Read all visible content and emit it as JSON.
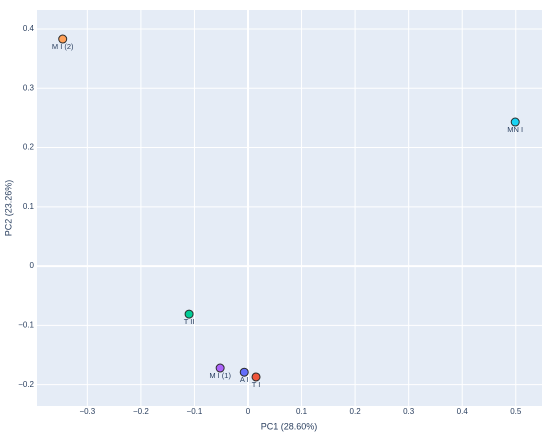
{
  "chart_data": {
    "type": "scatter",
    "x_label": "PC1 (28.60%)",
    "y_label": "PC2 (23.26%)",
    "labels": [
      "M I (2)",
      "MN I",
      "T II",
      "M I (1)",
      "A I",
      "T I"
    ],
    "x": [
      -0.346,
      0.499,
      -0.11,
      -0.052,
      -0.007,
      0.015
    ],
    "values": [
      0.383,
      0.243,
      -0.081,
      -0.172,
      -0.179,
      -0.187
    ],
    "colors": [
      "#ffa15a",
      "#19d3f3",
      "#00cc96",
      "#ab63fa",
      "#636efa",
      "#ef553b"
    ],
    "xlim": [
      -0.394,
      0.549
    ],
    "ylim": [
      -0.236,
      0.432
    ],
    "xticks": [
      {
        "value": -0.3,
        "label": "−0.3"
      },
      {
        "value": -0.2,
        "label": "−0.2"
      },
      {
        "value": -0.1,
        "label": "−0.1"
      },
      0,
      0.1,
      0.2,
      0.3,
      0.4,
      0.5
    ],
    "yticks": [
      {
        "value": -0.2,
        "label": "−0.2"
      },
      {
        "value": -0.1,
        "label": "−0.1"
      },
      0,
      0.1,
      0.2,
      0.3,
      0.4
    ],
    "grid": true
  }
}
